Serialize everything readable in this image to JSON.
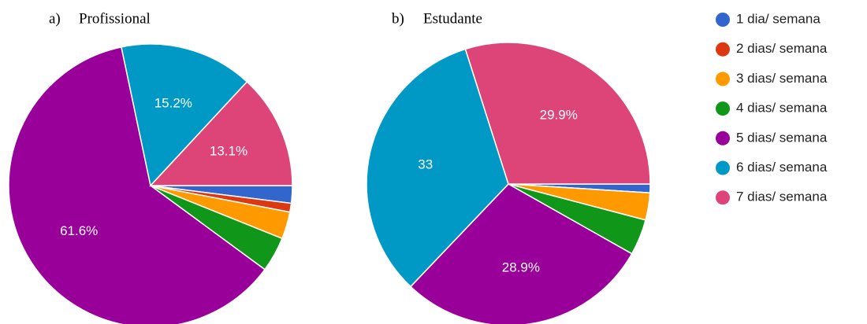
{
  "chart_data": [
    {
      "type": "pie",
      "label": "a)",
      "title": "Profissional",
      "values": [
        2.0,
        1.0,
        3.1,
        4.0,
        61.6,
        15.2,
        13.1
      ],
      "value_labels": [
        null,
        null,
        null,
        null,
        "61.6%",
        "15.2%",
        "13.1%"
      ],
      "start_angle": 90
    },
    {
      "type": "pie",
      "label": "b)",
      "title": "Estudante",
      "values": [
        1.0,
        0,
        3.1,
        4.1,
        28.9,
        33,
        29.9
      ],
      "value_labels": [
        null,
        null,
        null,
        null,
        "28.9%",
        "33",
        "29.9%"
      ],
      "start_angle": 90
    }
  ],
  "legend": {
    "labels": [
      "1 dia/ semana",
      "2 dias/ semana",
      "3 dias/ semana",
      "4 dias/ semana",
      "5 dias/ semana",
      "6 dias/ semana",
      "7 dias/ semana"
    ],
    "colors": [
      "#3366cc",
      "#dc3912",
      "#ff9900",
      "#109618",
      "#990099",
      "#0099c6",
      "#dd4477"
    ]
  }
}
